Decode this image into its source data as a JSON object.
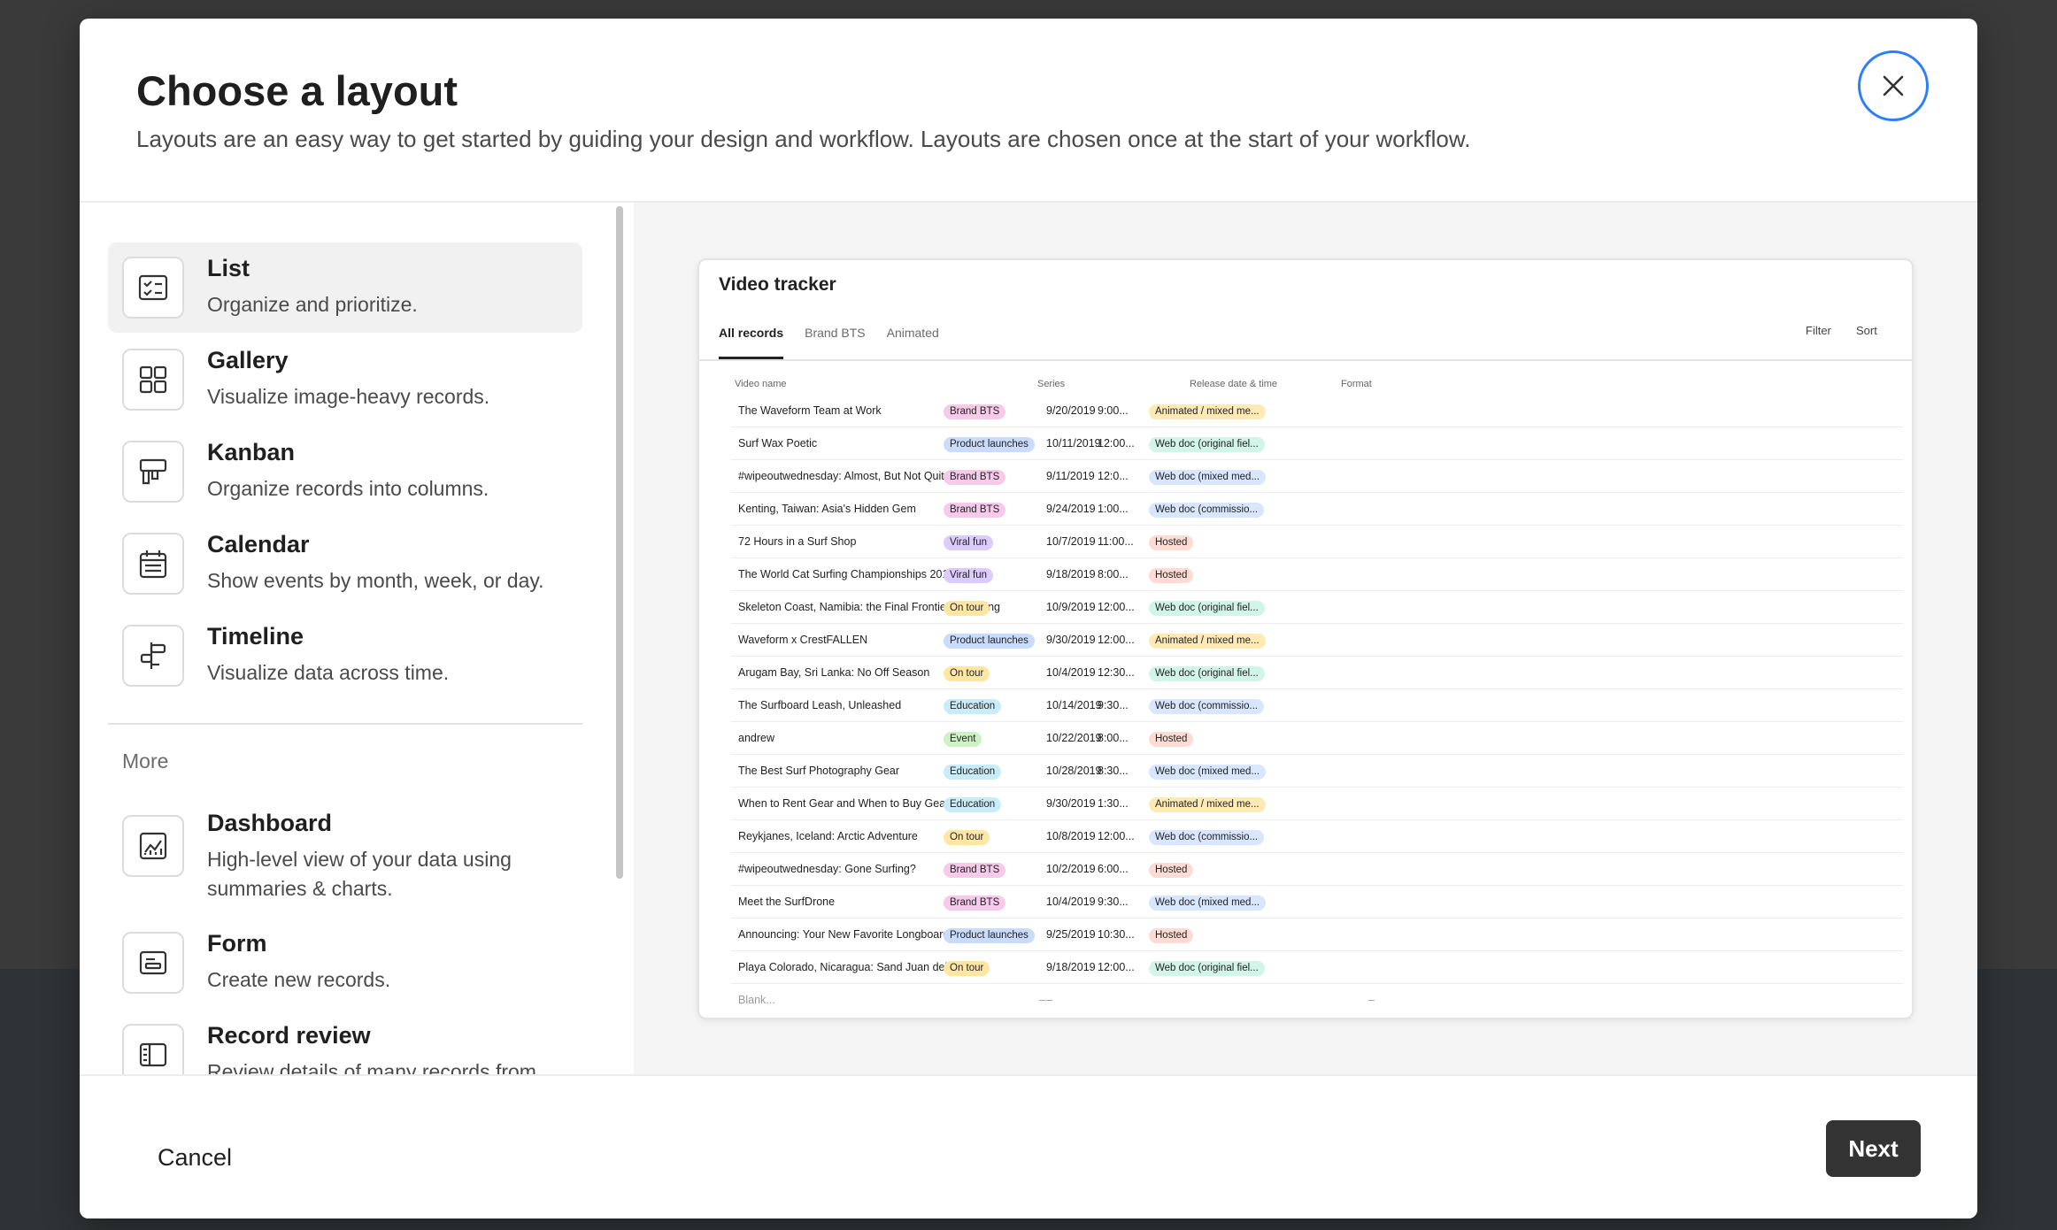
{
  "dialog": {
    "title": "Choose a layout",
    "subtitle": "Layouts are an easy way to get started by guiding your design and workflow. Layouts are chosen once at the start of your workflow."
  },
  "layouts": [
    {
      "name": "List",
      "description": "Organize and prioritize.",
      "icon": "list-checklist-icon",
      "selected": true
    },
    {
      "name": "Gallery",
      "description": "Visualize image-heavy records.",
      "icon": "gallery-grid-icon"
    },
    {
      "name": "Kanban",
      "description": "Organize records into columns.",
      "icon": "kanban-icon"
    },
    {
      "name": "Calendar",
      "description": "Show events by month, week, or day.",
      "icon": "calendar-icon"
    },
    {
      "name": "Timeline",
      "description": "Visualize data across time.",
      "icon": "timeline-icon"
    }
  ],
  "more_label": "More",
  "more_layouts": [
    {
      "name": "Dashboard",
      "description": "High-level view of your data using summaries & charts.",
      "icon": "dashboard-chart-icon"
    },
    {
      "name": "Form",
      "description": "Create new records.",
      "icon": "form-icon"
    },
    {
      "name": "Record review",
      "description": "Review details of many records from",
      "icon": "record-review-icon"
    }
  ],
  "preview": {
    "title": "Video tracker",
    "tabs": [
      "All records",
      "Brand BTS",
      "Animated"
    ],
    "actions": {
      "filter": "Filter",
      "sort": "Sort"
    },
    "columns": [
      "Video name",
      "Series",
      "Release date & time",
      "Format"
    ],
    "rows": [
      {
        "name": "The Waveform Team at Work",
        "series": "Brand BTS",
        "date": "9/20/2019",
        "time": "9:00...",
        "format": "Animated / mixed me..."
      },
      {
        "name": "Surf Wax Poetic",
        "series": "Product launches",
        "date": "10/11/2019",
        "time": "12:00...",
        "format": "Web doc (original fiel..."
      },
      {
        "name": "#wipeoutwednesday: Almost, But Not Quite",
        "series": "Brand BTS",
        "date": "9/11/2019",
        "time": "12:0...",
        "format": "Web doc (mixed med..."
      },
      {
        "name": "Kenting, Taiwan: Asia's Hidden Gem",
        "series": "Brand BTS",
        "date": "9/24/2019",
        "time": "1:00...",
        "format": "Web doc (commissio..."
      },
      {
        "name": "72 Hours in a Surf Shop",
        "series": "Viral fun",
        "date": "10/7/2019",
        "time": "11:00...",
        "format": "Hosted"
      },
      {
        "name": "The World Cat Surfing Championships 2019",
        "series": "Viral fun",
        "date": "9/18/2019",
        "time": "8:00...",
        "format": "Hosted"
      },
      {
        "name": "Skeleton Coast, Namibia: the Final Frontier of Surfing",
        "series": "On tour",
        "date": "10/9/2019",
        "time": "12:00...",
        "format": "Web doc (original fiel..."
      },
      {
        "name": "Waveform x CrestFALLEN",
        "series": "Product launches",
        "date": "9/30/2019",
        "time": "12:00...",
        "format": "Animated / mixed me..."
      },
      {
        "name": "Arugam Bay, Sri Lanka: No Off Season",
        "series": "On tour",
        "date": "10/4/2019",
        "time": "12:30...",
        "format": "Web doc (original fiel..."
      },
      {
        "name": "The Surfboard Leash, Unleashed",
        "series": "Education",
        "date": "10/14/2019",
        "time": "9:30...",
        "format": "Web doc (commissio..."
      },
      {
        "name": "andrew",
        "series": "Event",
        "date": "10/22/2019",
        "time": "8:00...",
        "format": "Hosted"
      },
      {
        "name": "The Best Surf Photography Gear",
        "series": "Education",
        "date": "10/28/2019",
        "time": "8:30...",
        "format": "Web doc (mixed med..."
      },
      {
        "name": "When to Rent Gear and When to Buy Gear",
        "series": "Education",
        "date": "9/30/2019",
        "time": "1:30...",
        "format": "Animated / mixed me..."
      },
      {
        "name": "Reykjanes, Iceland: Arctic Adventure",
        "series": "On tour",
        "date": "10/8/2019",
        "time": "12:00...",
        "format": "Web doc (commissio..."
      },
      {
        "name": "#wipeoutwednesday: Gone Surfing?",
        "series": "Brand BTS",
        "date": "10/2/2019",
        "time": "6:00...",
        "format": "Hosted"
      },
      {
        "name": "Meet the SurfDrone",
        "series": "Brand BTS",
        "date": "10/4/2019",
        "time": "9:30...",
        "format": "Web doc (mixed med..."
      },
      {
        "name": "Announcing: Your New Favorite Longboard",
        "series": "Product launches",
        "date": "9/25/2019",
        "time": "10:30...",
        "format": "Hosted"
      },
      {
        "name": "Playa Colorado, Nicaragua: Sand Juan del Sur",
        "series": "On tour",
        "date": "9/18/2019",
        "time": "12:00...",
        "format": "Web doc (original fiel..."
      }
    ],
    "blank_row": {
      "name": "Blank...",
      "series": "–",
      "date": "–",
      "format": "–"
    },
    "series_colors": {
      "Brand BTS": "#f7c9ea",
      "Product launches": "#c9dcff",
      "Viral fun": "#dccbff",
      "On tour": "#ffe7a3",
      "Education": "#c8ecf8",
      "Event": "#cdf2c4"
    },
    "format_colors": {
      "Animated": "#ffeab6",
      "Web doc (original": "#d2f5ea",
      "Web doc (mixed": "#d9e6ff",
      "Web doc (commissio": "#d9e6ff",
      "Hosted": "#ffdcd3"
    }
  },
  "footer": {
    "cancel_label": "Cancel",
    "next_label": "Next"
  },
  "colors": {
    "focus_ring": "#2d7ff9",
    "next_bg": "#333333"
  }
}
